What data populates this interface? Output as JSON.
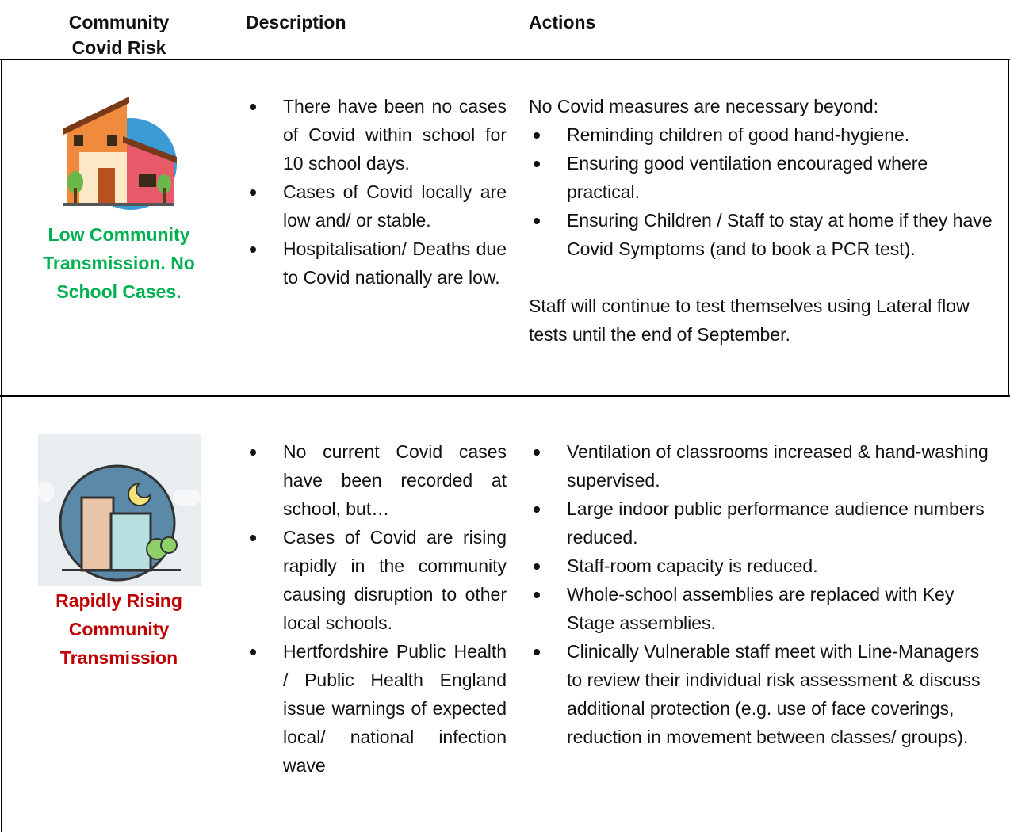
{
  "header": {
    "columns": [
      "Community Covid Risk",
      "Description",
      "Actions"
    ]
  },
  "rows": [
    {
      "risk": "Low Community Transmission. No School Cases.",
      "description": [
        "There have been no cases of Covid within school for 10 school days.",
        "Cases of Covid locally are low and/ or stable.",
        "Hospitalisation/ Deaths due to Covid nationally are low."
      ],
      "actions_intro": "No Covid measures are necessary beyond:",
      "actions": [
        "Reminding children of good hand-hygiene.",
        "Ensuring good ventilation encouraged where practical.",
        "Ensuring Children / Staff to stay at home if they have Covid Symptoms (and to book a PCR test)."
      ],
      "actions_note": "Staff will continue to test themselves using Lateral flow tests until the end of September."
    },
    {
      "risk": "Rapidly Rising Community Transmission",
      "description": [
        "No current Covid cases have been recorded at school, but…",
        "Cases of Covid are rising rapidly in the community causing disruption to other local schools.",
        "Hertfordshire Public Health / Public Health England issue warnings of expected local/ national infection wave"
      ],
      "actions": [
        "Ventilation of classrooms increased & hand-washing supervised.",
        "Large indoor public performance audience numbers reduced.",
        "Staff-room capacity is reduced.",
        "Whole-school assemblies are replaced with Key Stage assemblies.",
        "Clinically Vulnerable staff meet with Line-Managers to review their individual risk assessment & discuss additional protection (e.g. use of face coverings, reduction in movement between classes/ groups)."
      ]
    }
  ]
}
